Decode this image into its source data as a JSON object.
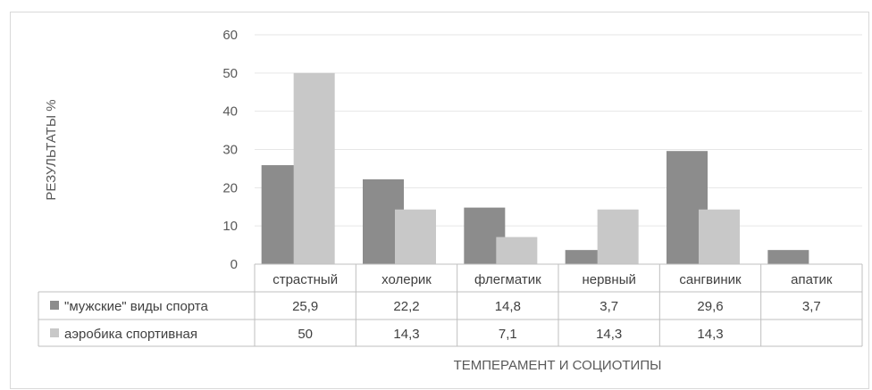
{
  "chart_data": {
    "type": "bar",
    "xlabel": "ТЕМПЕРАМЕНТ И СОЦИОТИПЫ",
    "ylabel": "РЕЗУЛЬТАТЫ %",
    "ylim": [
      0,
      60
    ],
    "yticks": [
      0,
      10,
      20,
      30,
      40,
      50,
      60
    ],
    "grid": true,
    "legend": "data-table",
    "categories": [
      "страстный",
      "холерик",
      "флегматик",
      "нервный",
      "сангвиник",
      "апатик"
    ],
    "series": [
      {
        "name": "\"мужские\" виды спорта",
        "color": "#8c8c8c",
        "values": [
          25.9,
          22.2,
          14.8,
          3.7,
          29.6,
          3.7
        ],
        "labels": [
          "25,9",
          "22,2",
          "14,8",
          "3,7",
          "29,6",
          "3,7"
        ]
      },
      {
        "name": "аэробика спортивная",
        "color": "#c8c8c8",
        "values": [
          50,
          14.3,
          7.1,
          14.3,
          14.3,
          null
        ],
        "labels": [
          "50",
          "14,3",
          "7,1",
          "14,3",
          "14,3",
          ""
        ]
      }
    ]
  }
}
